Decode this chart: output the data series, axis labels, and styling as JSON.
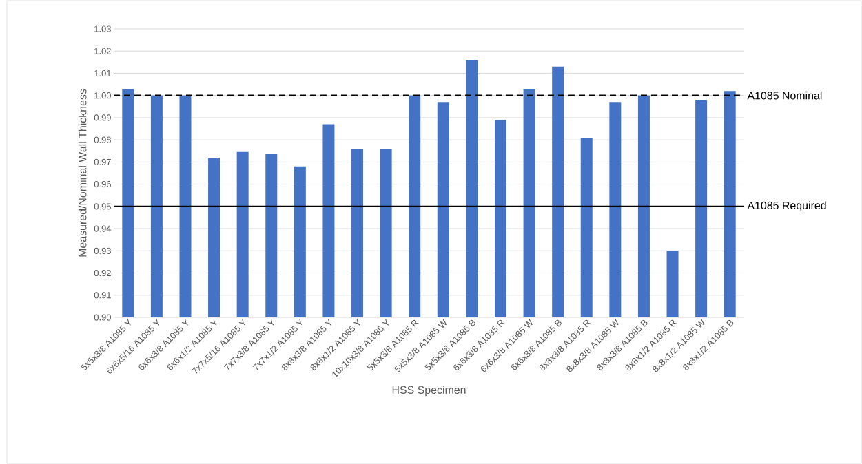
{
  "chart_data": {
    "type": "bar",
    "xlabel": "HSS Specimen",
    "ylabel": "Measured/Nominal Wall Thickness",
    "categories": [
      "5x5x3/8 A1085 Y",
      "6x6x5/16 A1085 Y",
      "6x6x3/8 A1085 Y",
      "6x6x1/2 A1085 Y",
      "7x7x5/16 A1085 Y",
      "7x7x3/8 A1085 Y",
      "7x7x1/2 A1085 Y",
      "8x8x3/8 A1085 Y",
      "8x8x1/2 A1085 Y",
      "10x10x3/8 A1085 Y",
      "5x5x3/8 A1085 R",
      "5x5x3/8 A1085 W",
      "5x5x3/8 A1085 B",
      "6x6x3/8 A1085 R",
      "6x6x3/8 A1085 W",
      "6x6x3/8 A1085 B",
      "8x8x3/8 A1085 R",
      "8x8x3/8 A1085 W",
      "8x8x3/8 A1085 B",
      "8x8x1/2 A1085 R",
      "8x8x1/2 A1085 W",
      "8x8x1/2 A1085 B"
    ],
    "values": [
      1.003,
      1.0,
      1.0,
      0.972,
      0.9745,
      0.9735,
      0.968,
      0.987,
      0.976,
      0.976,
      1.0,
      0.997,
      1.016,
      0.989,
      1.003,
      1.013,
      0.981,
      0.997,
      1.0,
      0.93,
      0.998,
      1.002
    ],
    "color": "#4472c4",
    "ylim": [
      0.9,
      1.03
    ],
    "yticks": [
      {
        "value": 0.9,
        "label": "0.90"
      },
      {
        "value": 0.91,
        "label": "0.91"
      },
      {
        "value": 0.92,
        "label": "0.92"
      },
      {
        "value": 0.93,
        "label": "0.93"
      },
      {
        "value": 0.94,
        "label": "0.94"
      },
      {
        "value": 0.95,
        "label": "0.95"
      },
      {
        "value": 0.96,
        "label": "0.96"
      },
      {
        "value": 0.97,
        "label": "0.97"
      },
      {
        "value": 0.98,
        "label": "0.98"
      },
      {
        "value": 0.99,
        "label": "0.99"
      },
      {
        "value": 1.0,
        "label": "1.00"
      },
      {
        "value": 1.01,
        "label": "1.01"
      },
      {
        "value": 1.02,
        "label": "1.02"
      },
      {
        "value": 1.03,
        "label": "1.03"
      }
    ],
    "grid": "y",
    "ref_lines": [
      {
        "axis": "y",
        "value": 1.0,
        "label": "A1085 Nominal",
        "color": "#000000",
        "line_style": "dashed"
      },
      {
        "axis": "y",
        "value": 0.95,
        "label": "A1085 Required",
        "color": "#000000",
        "line_style": "solid"
      }
    ]
  }
}
